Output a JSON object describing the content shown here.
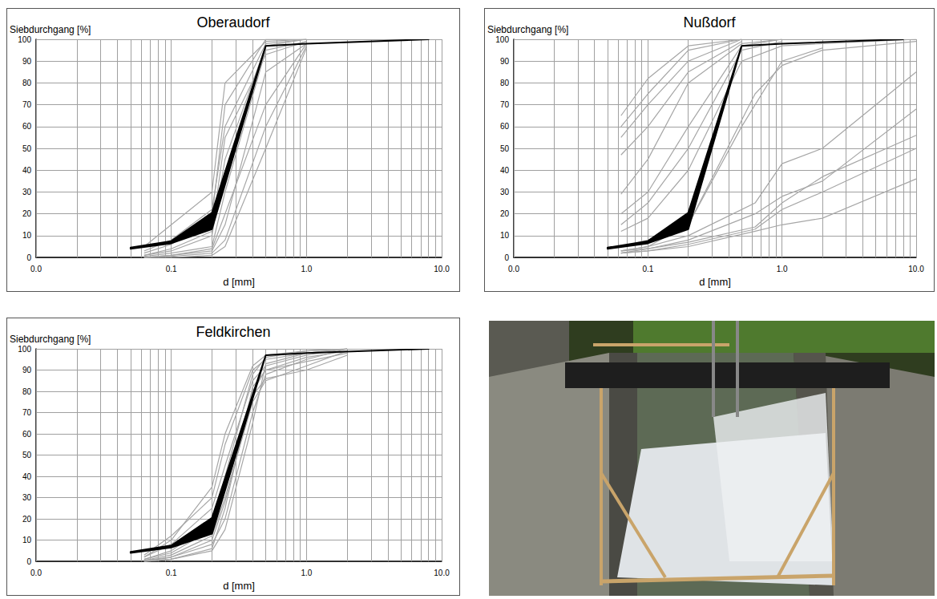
{
  "chart_data": [
    {
      "type": "line",
      "title": "Oberaudorf",
      "xlabel": "d [mm]",
      "ylabel": "Siebdurchgang [%]",
      "log": "x",
      "grid": true,
      "xlim": [
        0.01,
        10
      ],
      "xticks": [
        {
          "value": 0.01,
          "label": "0.0"
        },
        0.1,
        {
          "value": 1,
          "label": "1.0"
        },
        {
          "value": 10,
          "label": "10.0"
        }
      ],
      "ylim": [
        0,
        100
      ],
      "yticks": [
        0,
        10,
        20,
        30,
        40,
        50,
        60,
        70,
        80,
        90,
        100
      ],
      "series": [
        {
          "color": "#a6a6a6",
          "x": [
            0.063,
            0.1,
            0.2,
            0.25,
            0.5,
            1
          ],
          "values": [
            5,
            15,
            30,
            80,
            99,
            100
          ]
        },
        {
          "color": "#a6a6a6",
          "x": [
            0.063,
            0.1,
            0.2,
            0.25,
            0.5,
            1
          ],
          "values": [
            3,
            8,
            22,
            60,
            98,
            100
          ]
        },
        {
          "color": "#a6a6a6",
          "x": [
            0.063,
            0.1,
            0.2,
            0.25,
            0.5,
            1
          ],
          "values": [
            1,
            3,
            10,
            45,
            97,
            100
          ]
        },
        {
          "color": "#a6a6a6",
          "x": [
            0.063,
            0.1,
            0.2,
            0.25,
            0.5,
            1
          ],
          "values": [
            0.5,
            2,
            5,
            30,
            95,
            99
          ]
        },
        {
          "color": "#a6a6a6",
          "x": [
            0.063,
            0.1,
            0.2,
            0.25,
            0.5,
            1
          ],
          "values": [
            0,
            1,
            3,
            15,
            85,
            98
          ]
        },
        {
          "color": "#a6a6a6",
          "x": [
            0.063,
            0.1,
            0.2,
            0.25,
            0.5,
            1
          ],
          "values": [
            0,
            0.5,
            2,
            8,
            60,
            97
          ]
        },
        {
          "color": "#a6a6a6",
          "x": [
            0.063,
            0.1,
            0.2,
            0.25,
            0.5,
            1
          ],
          "values": [
            1,
            4,
            12,
            55,
            93,
            99
          ]
        },
        {
          "color": "#a6a6a6",
          "x": [
            0.063,
            0.1,
            0.2,
            0.25,
            0.5,
            1
          ],
          "values": [
            0,
            1,
            4,
            20,
            70,
            98
          ]
        },
        {
          "color": "#a6a6a6",
          "x": [
            0.063,
            0.1,
            0.2,
            0.25,
            0.5,
            1
          ],
          "values": [
            2,
            6,
            18,
            70,
            100,
            100
          ]
        },
        {
          "color": "#a6a6a6",
          "x": [
            0.063,
            0.1,
            0.2,
            0.25,
            0.5,
            1
          ],
          "values": [
            0,
            0,
            1,
            5,
            50,
            96
          ]
        },
        {
          "type": "band",
          "color": "#000000",
          "x": [
            0.05,
            0.1,
            0.2,
            0.5,
            1,
            8
          ],
          "lower": [
            4,
            6.5,
            13,
            97,
            98,
            100
          ],
          "upper": [
            4.5,
            7.5,
            20.5,
            97,
            98,
            100
          ]
        }
      ]
    },
    {
      "type": "line",
      "title": "Nußdorf",
      "xlabel": "d [mm]",
      "ylabel": "Siebdurchgang [%]",
      "log": "x",
      "grid": true,
      "xlim": [
        0.01,
        10
      ],
      "xticks": [
        {
          "value": 0.01,
          "label": "0.0"
        },
        0.1,
        {
          "value": 1,
          "label": "1.0"
        },
        {
          "value": 10,
          "label": "10.0"
        }
      ],
      "ylim": [
        0,
        100
      ],
      "yticks": [
        0,
        10,
        20,
        30,
        40,
        50,
        60,
        70,
        80,
        90,
        100
      ],
      "series": [
        {
          "color": "#a6a6a6",
          "x": [
            0.063,
            0.1,
            0.2,
            0.5
          ],
          "values": [
            65,
            82,
            97,
            100
          ]
        },
        {
          "color": "#a6a6a6",
          "x": [
            0.063,
            0.1,
            0.2,
            0.5
          ],
          "values": [
            60,
            75,
            95,
            100
          ]
        },
        {
          "color": "#a6a6a6",
          "x": [
            0.063,
            0.1,
            0.2,
            0.5
          ],
          "values": [
            55,
            70,
            90,
            100
          ]
        },
        {
          "color": "#a6a6a6",
          "x": [
            0.063,
            0.1,
            0.2,
            0.5
          ],
          "values": [
            47,
            60,
            85,
            99
          ]
        },
        {
          "color": "#a6a6a6",
          "x": [
            0.063,
            0.1,
            0.2,
            0.5,
            1
          ],
          "values": [
            29,
            45,
            80,
            98,
            100
          ]
        },
        {
          "color": "#a6a6a6",
          "x": [
            0.063,
            0.1,
            0.2,
            0.5,
            1
          ],
          "values": [
            20,
            30,
            60,
            97,
            100
          ]
        },
        {
          "color": "#a6a6a6",
          "x": [
            0.063,
            0.1,
            0.2,
            0.5,
            1
          ],
          "values": [
            15,
            25,
            50,
            95,
            99
          ]
        },
        {
          "color": "#a6a6a6",
          "x": [
            0.063,
            0.1,
            0.2,
            0.5,
            1,
            2,
            10
          ],
          "values": [
            12,
            18,
            40,
            90,
            97,
            98,
            100
          ]
        },
        {
          "color": "#a6a6a6",
          "x": [
            0.063,
            0.1,
            0.2,
            0.63,
            1,
            2,
            10
          ],
          "values": [
            5,
            8,
            15,
            75,
            88,
            95,
            99
          ]
        },
        {
          "color": "#a6a6a6",
          "x": [
            0.063,
            0.1,
            0.2,
            0.63,
            1,
            2,
            10
          ],
          "values": [
            3,
            5,
            10,
            25,
            43,
            50,
            85
          ]
        },
        {
          "color": "#a6a6a6",
          "x": [
            0.063,
            0.1,
            0.2,
            0.63,
            1,
            2,
            10
          ],
          "values": [
            3,
            4,
            8,
            20,
            28,
            35,
            68
          ]
        },
        {
          "color": "#a6a6a6",
          "x": [
            0.063,
            0.1,
            0.2,
            0.63,
            1,
            2,
            10
          ],
          "values": [
            2,
            4,
            7,
            14,
            25,
            37,
            56
          ]
        },
        {
          "color": "#a6a6a6",
          "x": [
            0.063,
            0.1,
            0.2,
            0.63,
            1,
            2,
            10
          ],
          "values": [
            2,
            3,
            6,
            13,
            22,
            30,
            50
          ]
        },
        {
          "color": "#a6a6a6",
          "x": [
            0.063,
            0.1,
            0.2,
            0.63,
            1,
            2,
            10
          ],
          "values": [
            2,
            3,
            5,
            12,
            15,
            18,
            36
          ]
        },
        {
          "color": "#a6a6a6",
          "x": [
            0.063,
            0.1,
            0.2,
            0.5,
            1,
            2
          ],
          "values": [
            3,
            5,
            15,
            60,
            90,
            96
          ]
        },
        {
          "type": "band",
          "color": "#000000",
          "x": [
            0.05,
            0.1,
            0.2,
            0.5,
            1,
            8
          ],
          "lower": [
            4,
            6.5,
            13,
            97,
            98,
            100
          ],
          "upper": [
            4.5,
            7.5,
            20.5,
            97,
            98,
            100
          ]
        }
      ]
    },
    {
      "type": "line",
      "title": "Feldkirchen",
      "xlabel": "d [mm]",
      "ylabel": "Siebdurchgang [%]",
      "log": "x",
      "grid": true,
      "xlim": [
        0.01,
        10
      ],
      "xticks": [
        {
          "value": 0.01,
          "label": "0.0"
        },
        0.1,
        {
          "value": 1,
          "label": "1.0"
        },
        {
          "value": 10,
          "label": "10.0"
        }
      ],
      "ylim": [
        0,
        100
      ],
      "yticks": [
        0,
        10,
        20,
        30,
        40,
        50,
        60,
        70,
        80,
        90,
        100
      ],
      "series": [
        {
          "color": "#a6a6a6",
          "x": [
            0.063,
            0.1,
            0.2,
            0.25,
            0.4,
            0.5,
            1,
            2
          ],
          "values": [
            3,
            12,
            30,
            55,
            90,
            95,
            98,
            100
          ]
        },
        {
          "color": "#a6a6a6",
          "x": [
            0.063,
            0.1,
            0.2,
            0.25,
            0.4,
            0.5,
            1,
            2
          ],
          "values": [
            2,
            8,
            25,
            45,
            85,
            92,
            97,
            100
          ]
        },
        {
          "color": "#a6a6a6",
          "x": [
            0.063,
            0.1,
            0.2,
            0.25,
            0.4,
            0.5,
            1,
            2
          ],
          "values": [
            1,
            5,
            18,
            35,
            80,
            90,
            96,
            99
          ]
        },
        {
          "color": "#a6a6a6",
          "x": [
            0.063,
            0.1,
            0.2,
            0.25,
            0.4,
            0.5,
            1,
            2
          ],
          "values": [
            0.5,
            3,
            12,
            30,
            75,
            85,
            92,
            99
          ]
        },
        {
          "color": "#a6a6a6",
          "x": [
            0.063,
            0.1,
            0.2,
            0.25,
            0.4,
            0.5,
            1,
            2
          ],
          "values": [
            0,
            2,
            8,
            20,
            70,
            88,
            95,
            100
          ]
        },
        {
          "color": "#a6a6a6",
          "x": [
            0.063,
            0.1,
            0.2,
            0.25,
            0.4,
            0.5,
            1,
            2
          ],
          "values": [
            0,
            1,
            5,
            15,
            65,
            93,
            98,
            100
          ]
        },
        {
          "color": "#a6a6a6",
          "x": [
            0.063,
            0.1,
            0.2,
            0.25,
            0.4,
            0.5,
            1,
            2
          ],
          "values": [
            2,
            10,
            35,
            60,
            92,
            97,
            99,
            100
          ]
        },
        {
          "color": "#a6a6a6",
          "x": [
            0.063,
            0.1,
            0.2,
            0.25,
            0.4,
            0.5,
            1,
            2
          ],
          "values": [
            1,
            4,
            15,
            40,
            88,
            96,
            99,
            100
          ]
        },
        {
          "color": "#a6a6a6",
          "x": [
            0.063,
            0.1,
            0.2,
            0.25,
            0.4,
            0.5,
            1,
            2
          ],
          "values": [
            0,
            1,
            6,
            25,
            82,
            90,
            94,
            98
          ]
        },
        {
          "color": "#a6a6a6",
          "x": [
            0.063,
            0.1,
            0.2,
            0.25,
            0.4,
            0.5,
            1,
            2
          ],
          "values": [
            0.5,
            2,
            10,
            28,
            78,
            86,
            90,
            97
          ]
        },
        {
          "type": "band",
          "color": "#000000",
          "x": [
            0.05,
            0.1,
            0.2,
            0.5,
            1,
            8
          ],
          "lower": [
            4,
            6.5,
            13,
            97,
            98,
            100
          ],
          "upper": [
            4.5,
            7.5,
            20.5,
            97,
            98,
            100
          ]
        }
      ]
    }
  ]
}
